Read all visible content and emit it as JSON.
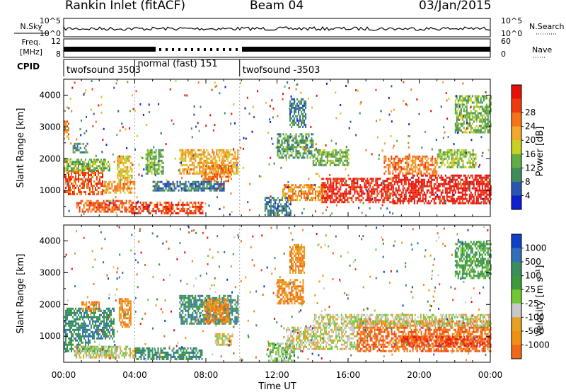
{
  "header": {
    "station": "Rankin Inlet (fitACF)",
    "beam": "Beam 04",
    "date": "03/Jan/2015"
  },
  "colors": {
    "power": [
      "#1020d0",
      "#2a55b0",
      "#3e8c5c",
      "#62ad44",
      "#c8d020",
      "#f3a82a",
      "#f57418",
      "#ef3a10",
      "#e81008"
    ],
    "velocity": [
      "#1040c8",
      "#3070b8",
      "#3a8e5e",
      "#3c9a3a",
      "#72c832",
      "#c8c8c8",
      "#e8a020",
      "#f09010",
      "#f06818",
      "#f04010",
      "#e81010"
    ]
  },
  "chart_data": [
    {
      "type": "line",
      "name": "status",
      "left_labels": {
        "sky": "N.Sky",
        "freq": "Freq.",
        "freq_unit": "[MHz]",
        "cpid": "CPID"
      },
      "right_labels": {
        "search": "N.Search",
        "nave": "Nave"
      },
      "sky_ticks": [
        "10^5",
        "10^0"
      ],
      "search_ticks": [
        "10^5",
        "10^0"
      ],
      "freq_ticks": [
        "12",
        "8"
      ],
      "nave_ticks": [
        "60",
        "0"
      ],
      "cpid_segments": [
        {
          "label": "twofsound 3503",
          "start": 0.0,
          "end": 4.0
        },
        {
          "label": "normal (fast) 151",
          "start": 4.0,
          "end": 9.9
        },
        {
          "label": "twofsound -3503",
          "start": 9.9,
          "end": 24.0
        }
      ]
    },
    {
      "type": "heatmap",
      "name": "power",
      "xlim": [
        0,
        24
      ],
      "ylim": [
        180,
        4500
      ],
      "ylabel": "Slant Range [km]",
      "yticks": [
        1000,
        2000,
        3000,
        4000
      ],
      "colorbar_label": "Power [dB]",
      "colorbar_ticks": [
        "4",
        "8",
        "12",
        "16",
        "20",
        "24",
        "28"
      ],
      "regions": [
        {
          "t0": 0.0,
          "t1": 2.2,
          "r0": 900,
          "r1": 1650,
          "level": 6.5
        },
        {
          "t0": 2.2,
          "t1": 4.0,
          "r0": 900,
          "r1": 1300,
          "level": 5.5
        },
        {
          "t0": 0.0,
          "t1": 2.6,
          "r0": 1600,
          "r1": 2000,
          "level": 3
        },
        {
          "t0": 0.0,
          "t1": 0.3,
          "r0": 2600,
          "r1": 3200,
          "level": 6
        },
        {
          "t0": 0.5,
          "t1": 1.3,
          "r0": 2200,
          "r1": 2500,
          "level": 2
        },
        {
          "t0": 0.7,
          "t1": 3.8,
          "r0": 300,
          "r1": 700,
          "level": 6.5
        },
        {
          "t0": 3.8,
          "t1": 7.8,
          "r0": 300,
          "r1": 650,
          "level": 7
        },
        {
          "t0": 3.0,
          "t1": 3.8,
          "r0": 1300,
          "r1": 2100,
          "level": 4.5
        },
        {
          "t0": 4.6,
          "t1": 5.6,
          "r0": 1500,
          "r1": 2300,
          "level": 3
        },
        {
          "t0": 6.5,
          "t1": 9.8,
          "r0": 1500,
          "r1": 2300,
          "level": 5
        },
        {
          "t0": 7.8,
          "t1": 9.4,
          "r0": 1300,
          "r1": 1800,
          "level": 6
        },
        {
          "t0": 5.0,
          "t1": 9.0,
          "r0": 1000,
          "r1": 1300,
          "level": 1.5
        },
        {
          "t0": 11.3,
          "t1": 12.8,
          "r0": 200,
          "r1": 800,
          "level": 1.5
        },
        {
          "t0": 12.3,
          "t1": 14.8,
          "r0": 700,
          "r1": 1200,
          "level": 5.5
        },
        {
          "t0": 14.5,
          "t1": 18.5,
          "r0": 600,
          "r1": 1400,
          "level": 7.5
        },
        {
          "t0": 18.5,
          "t1": 24.0,
          "r0": 600,
          "r1": 1500,
          "level": 8
        },
        {
          "t0": 18.0,
          "t1": 21.0,
          "r0": 1500,
          "r1": 2100,
          "level": 6
        },
        {
          "t0": 21.0,
          "t1": 23.2,
          "r0": 1700,
          "r1": 2300,
          "level": 3.5
        },
        {
          "t0": 12.7,
          "t1": 13.6,
          "r0": 3000,
          "r1": 3900,
          "level": 1.5
        },
        {
          "t0": 12.0,
          "t1": 14.0,
          "r0": 2000,
          "r1": 2800,
          "level": 2.5
        },
        {
          "t0": 14.0,
          "t1": 16.0,
          "r0": 1800,
          "r1": 2300,
          "level": 3
        },
        {
          "t0": 22.0,
          "t1": 24.0,
          "r0": 2800,
          "r1": 4000,
          "level": 3
        }
      ]
    },
    {
      "type": "heatmap",
      "name": "velocity",
      "xlim": [
        0,
        24
      ],
      "ylim": [
        180,
        4500
      ],
      "xlabel": "Time UT",
      "ylabel": "Slant Range [km]",
      "xticks": [
        "00:00",
        "04:00",
        "08:00",
        "12:00",
        "16:00",
        "20:00",
        "00:00"
      ],
      "yticks": [
        1000,
        2000,
        3000,
        4000
      ],
      "colorbar_label": "Velocity [m s⁻¹]",
      "colorbar_ticks": [
        "1000",
        "500",
        "100",
        "25",
        "-25",
        "-100",
        "-500",
        "-1000"
      ],
      "regions": [
        {
          "t0": 0.0,
          "t1": 2.8,
          "r0": 900,
          "r1": 1900,
          "level": 2
        },
        {
          "t0": 0.0,
          "t1": 1.5,
          "r0": 500,
          "r1": 900,
          "level": 2
        },
        {
          "t0": 1.0,
          "t1": 2.0,
          "r0": 1800,
          "r1": 2100,
          "level": 7
        },
        {
          "t0": 0.6,
          "t1": 4.0,
          "r0": 300,
          "r1": 700,
          "level": 5
        },
        {
          "t0": 1.3,
          "t1": 2.5,
          "r0": 500,
          "r1": 700,
          "level": 4
        },
        {
          "t0": 4.0,
          "t1": 7.8,
          "r0": 250,
          "r1": 650,
          "level": 2
        },
        {
          "t0": 3.1,
          "t1": 3.8,
          "r0": 1300,
          "r1": 2200,
          "level": 7
        },
        {
          "t0": 6.5,
          "t1": 9.8,
          "r0": 1400,
          "r1": 2300,
          "level": 2
        },
        {
          "t0": 7.9,
          "t1": 9.3,
          "r0": 1400,
          "r1": 2200,
          "level": 7
        },
        {
          "t0": 8.5,
          "t1": 9.5,
          "r0": 700,
          "r1": 1100,
          "level": 5
        },
        {
          "t0": 11.5,
          "t1": 13.0,
          "r0": 200,
          "r1": 800,
          "level": 4
        },
        {
          "t0": 12.5,
          "t1": 16.5,
          "r0": 600,
          "r1": 1300,
          "level": 5
        },
        {
          "t0": 16.5,
          "t1": 24.0,
          "r0": 500,
          "r1": 1500,
          "level": 8
        },
        {
          "t0": 14.0,
          "t1": 24.0,
          "r0": 1300,
          "r1": 1700,
          "level": 5
        },
        {
          "t0": 19.0,
          "t1": 24.0,
          "r0": 700,
          "r1": 1000,
          "level": 9
        },
        {
          "t0": 12.7,
          "t1": 13.5,
          "r0": 3000,
          "r1": 3900,
          "level": 7
        },
        {
          "t0": 12.0,
          "t1": 13.5,
          "r0": 2000,
          "r1": 2800,
          "level": 7
        },
        {
          "t0": 22.0,
          "t1": 24.0,
          "r0": 2800,
          "r1": 4000,
          "level": 3
        }
      ]
    }
  ]
}
